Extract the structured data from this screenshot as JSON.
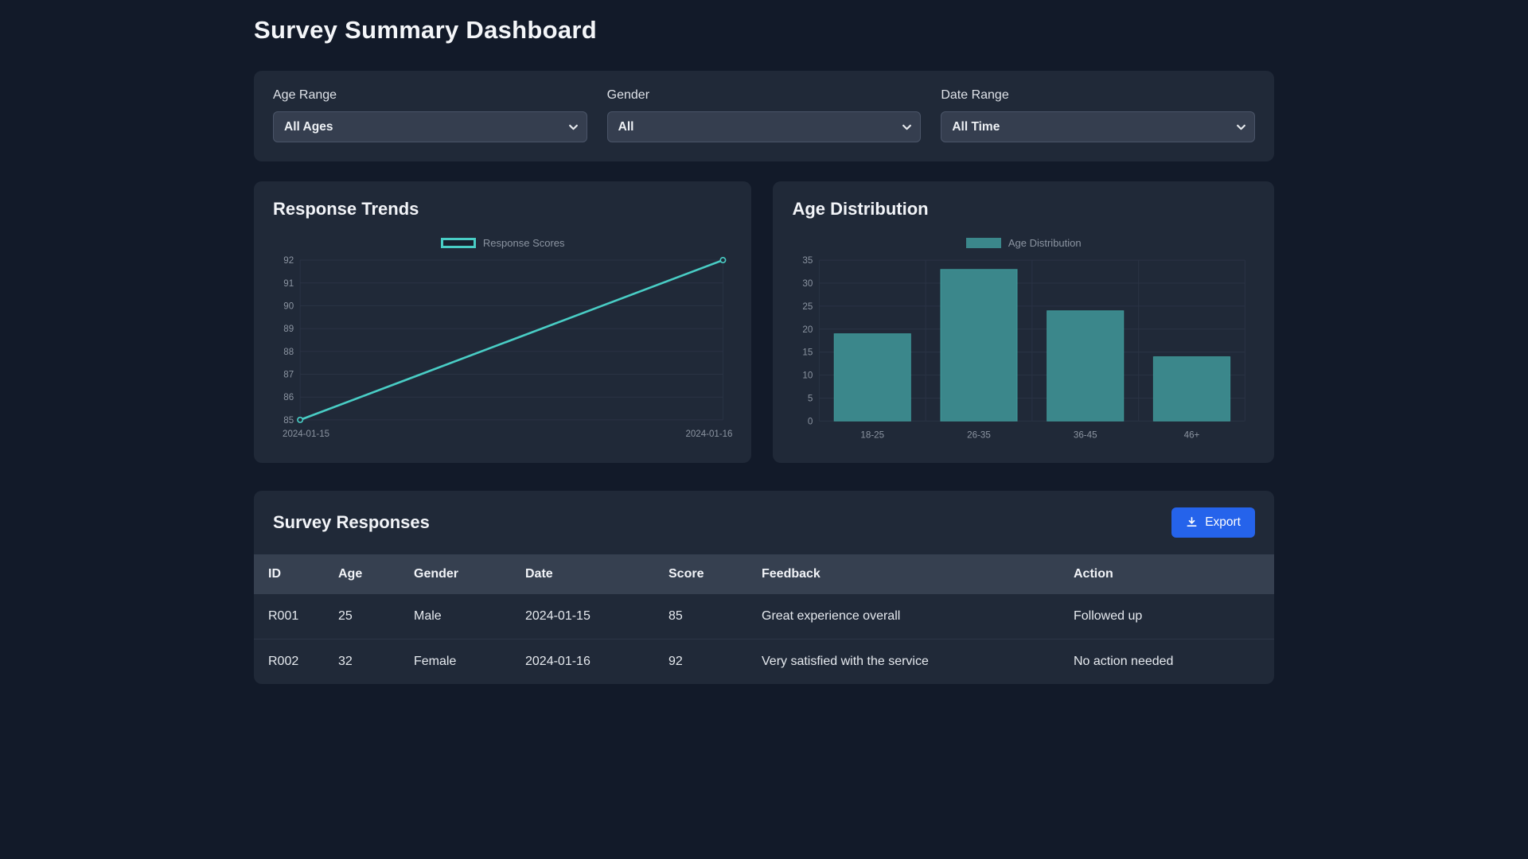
{
  "page": {
    "title": "Survey Summary Dashboard"
  },
  "colors": {
    "background": "#121a29",
    "card": "#202938",
    "accent_teal": "#49cdc5",
    "bar_fill": "#3b878b",
    "export_blue": "#2563eb",
    "grid": "#2a3344",
    "tick_text": "#8b94a1"
  },
  "filters": {
    "fields": [
      {
        "label": "Age Range",
        "value": "All Ages"
      },
      {
        "label": "Gender",
        "value": "All"
      },
      {
        "label": "Date Range",
        "value": "All Time"
      }
    ]
  },
  "chart_data": [
    {
      "type": "line",
      "title": "Response Trends",
      "legend": "Response Scores",
      "legend_position": "top-center",
      "x": [
        "2024-01-15",
        "2024-01-16"
      ],
      "values": [
        85,
        92
      ],
      "ylim": [
        85,
        92
      ],
      "yticks": [
        85,
        86,
        87,
        88,
        89,
        90,
        91,
        92
      ],
      "grid": true,
      "line_color": "#49cdc5",
      "point_style": "open-circle"
    },
    {
      "type": "bar",
      "title": "Age Distribution",
      "legend": "Age Distribution",
      "legend_position": "top-center",
      "categories": [
        "18-25",
        "26-35",
        "36-45",
        "46+"
      ],
      "values": [
        19,
        33,
        24,
        14
      ],
      "ylim": [
        0,
        35
      ],
      "yticks": [
        0,
        5,
        10,
        15,
        20,
        25,
        30,
        35
      ],
      "grid": true,
      "bar_color": "#3b878b"
    }
  ],
  "table": {
    "title": "Survey Responses",
    "export_label": "Export",
    "export_icon": "download-icon",
    "columns": [
      "ID",
      "Age",
      "Gender",
      "Date",
      "Score",
      "Feedback",
      "Action"
    ],
    "rows": [
      [
        "R001",
        "25",
        "Male",
        "2024-01-15",
        "85",
        "Great experience overall",
        "Followed up"
      ],
      [
        "R002",
        "32",
        "Female",
        "2024-01-16",
        "92",
        "Very satisfied with the service",
        "No action needed"
      ]
    ]
  }
}
